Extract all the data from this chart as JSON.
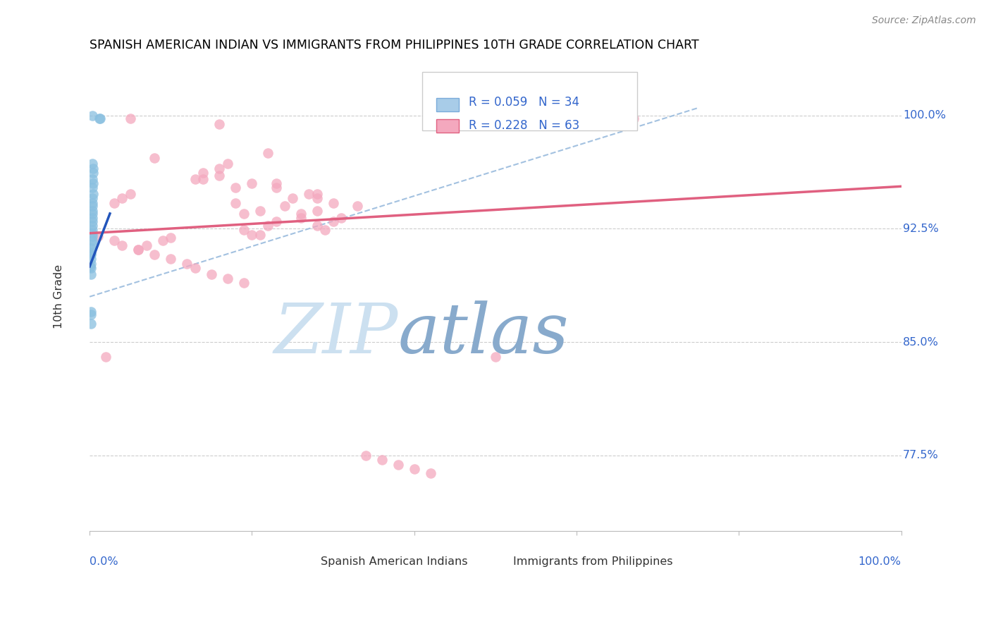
{
  "title": "SPANISH AMERICAN INDIAN VS IMMIGRANTS FROM PHILIPPINES 10TH GRADE CORRELATION CHART",
  "source": "Source: ZipAtlas.com",
  "ylabel": "10th Grade",
  "ylabel_ticks": [
    "100.0%",
    "92.5%",
    "85.0%",
    "77.5%"
  ],
  "ylabel_tick_vals": [
    1.0,
    0.925,
    0.85,
    0.775
  ],
  "xlim": [
    0.0,
    1.0
  ],
  "ylim": [
    0.725,
    1.035
  ],
  "legend_label1": "R = 0.059   N = 34",
  "legend_label2": "R = 0.228   N = 63",
  "dot_color_blue": "#89bfe0",
  "dot_color_pink": "#f4a8be",
  "line_color_blue": "#2255bb",
  "line_color_pink": "#e06080",
  "dash_line_color": "#99bbdd",
  "watermark_zip_color": "#cce0f0",
  "watermark_atlas_color": "#88aacc",
  "blue_scatter_x": [
    0.003,
    0.012,
    0.013,
    0.003,
    0.004,
    0.004,
    0.003,
    0.004,
    0.003,
    0.004,
    0.003,
    0.003,
    0.003,
    0.003,
    0.003,
    0.003,
    0.003,
    0.003,
    0.003,
    0.003,
    0.003,
    0.003,
    0.003,
    0.002,
    0.002,
    0.002,
    0.002,
    0.002,
    0.002,
    0.002,
    0.002,
    0.002,
    0.002,
    0.001
  ],
  "blue_scatter_y": [
    1.0,
    0.998,
    0.998,
    0.968,
    0.965,
    0.962,
    0.958,
    0.955,
    0.952,
    0.948,
    0.945,
    0.942,
    0.94,
    0.937,
    0.935,
    0.932,
    0.93,
    0.927,
    0.924,
    0.922,
    0.92,
    0.917,
    0.915,
    0.912,
    0.909,
    0.908,
    0.905,
    0.902,
    0.899,
    0.895,
    0.87,
    0.868,
    0.862,
    0.9
  ],
  "pink_scatter_x": [
    0.65,
    0.67,
    0.05,
    0.16,
    0.22,
    0.08,
    0.17,
    0.16,
    0.14,
    0.13,
    0.2,
    0.23,
    0.28,
    0.25,
    0.18,
    0.24,
    0.21,
    0.19,
    0.26,
    0.23,
    0.22,
    0.19,
    0.16,
    0.21,
    0.14,
    0.23,
    0.18,
    0.27,
    0.28,
    0.3,
    0.33,
    0.28,
    0.26,
    0.31,
    0.3,
    0.28,
    0.29,
    0.2,
    0.1,
    0.09,
    0.07,
    0.06,
    0.05,
    0.04,
    0.03,
    0.02,
    0.01,
    0.03,
    0.04,
    0.06,
    0.08,
    0.1,
    0.12,
    0.13,
    0.15,
    0.17,
    0.19,
    0.5,
    0.34,
    0.36,
    0.38,
    0.4,
    0.42
  ],
  "pink_scatter_y": [
    1.0,
    0.998,
    0.998,
    0.994,
    0.975,
    0.972,
    0.968,
    0.965,
    0.962,
    0.958,
    0.955,
    0.952,
    0.948,
    0.945,
    0.942,
    0.94,
    0.937,
    0.935,
    0.932,
    0.93,
    0.927,
    0.924,
    0.96,
    0.921,
    0.958,
    0.955,
    0.952,
    0.948,
    0.945,
    0.942,
    0.94,
    0.937,
    0.935,
    0.932,
    0.93,
    0.927,
    0.924,
    0.921,
    0.919,
    0.917,
    0.914,
    0.911,
    0.948,
    0.945,
    0.942,
    0.84,
    0.92,
    0.917,
    0.914,
    0.911,
    0.908,
    0.905,
    0.902,
    0.899,
    0.895,
    0.892,
    0.889,
    0.84,
    0.775,
    0.772,
    0.769,
    0.766,
    0.763
  ],
  "blue_line_x0": 0.0,
  "blue_line_x1": 0.025,
  "blue_line_y0": 0.9,
  "blue_line_y1": 0.935,
  "pink_line_x0": 0.0,
  "pink_line_x1": 1.0,
  "pink_line_y0": 0.922,
  "pink_line_y1": 0.953,
  "dash_line_x0": 0.0,
  "dash_line_x1": 0.75,
  "dash_line_y0": 0.88,
  "dash_line_y1": 1.005,
  "figsize": [
    14.06,
    8.92
  ],
  "dpi": 100
}
